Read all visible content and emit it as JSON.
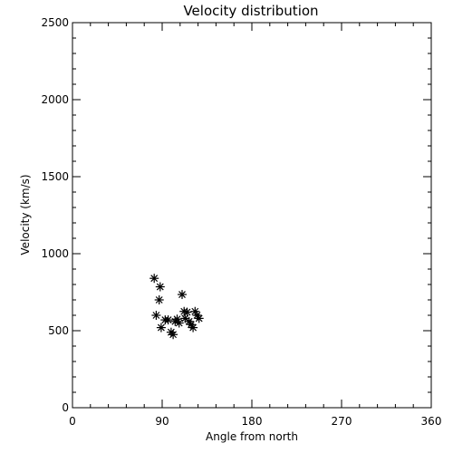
{
  "chart_data": {
    "type": "scatter",
    "title": "Velocity distribution",
    "xlabel": "Angle from north",
    "ylabel": "Velocity (km/s)",
    "xlim": [
      0,
      360
    ],
    "ylim": [
      0,
      2500
    ],
    "x_ticks": [
      "0",
      "90",
      "180",
      "270",
      "360"
    ],
    "y_ticks": [
      "0",
      "500",
      "1000",
      "1500",
      "2000",
      "2500"
    ],
    "grid": false,
    "marker": "asterisk",
    "points": [
      {
        "x": 82,
        "y": 840
      },
      {
        "x": 88,
        "y": 785
      },
      {
        "x": 87,
        "y": 700
      },
      {
        "x": 84,
        "y": 600
      },
      {
        "x": 89,
        "y": 520
      },
      {
        "x": 93,
        "y": 570
      },
      {
        "x": 96,
        "y": 570
      },
      {
        "x": 99,
        "y": 490
      },
      {
        "x": 101,
        "y": 475
      },
      {
        "x": 103,
        "y": 560
      },
      {
        "x": 105,
        "y": 575
      },
      {
        "x": 107,
        "y": 550
      },
      {
        "x": 110,
        "y": 735
      },
      {
        "x": 112,
        "y": 625
      },
      {
        "x": 113,
        "y": 580
      },
      {
        "x": 115,
        "y": 620
      },
      {
        "x": 117,
        "y": 560
      },
      {
        "x": 119,
        "y": 540
      },
      {
        "x": 121,
        "y": 520
      },
      {
        "x": 123,
        "y": 625
      },
      {
        "x": 125,
        "y": 600
      },
      {
        "x": 127,
        "y": 580
      }
    ]
  }
}
